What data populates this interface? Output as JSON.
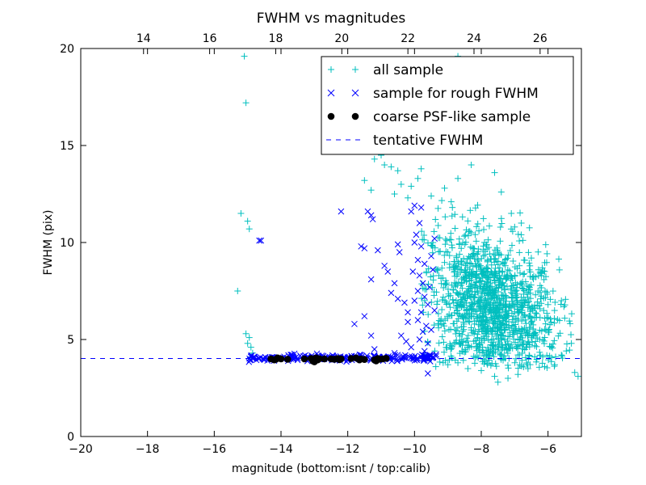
{
  "chart_data": {
    "type": "scatter",
    "title": "FWHM vs magnitudes",
    "xlabel": "magnitude (bottom:isnt / top:calib)",
    "ylabel": "FWHM (pix)",
    "xlim": [
      -20,
      -5
    ],
    "ylim": [
      0,
      20
    ],
    "top_xlim": [
      12.1,
      27.25
    ],
    "x_ticks": [
      -20,
      -18,
      -16,
      -14,
      -12,
      -10,
      -8,
      -6
    ],
    "x_tick_labels": [
      "−20",
      "−18",
      "−16",
      "−14",
      "−12",
      "−10",
      "−8",
      "−6"
    ],
    "y_ticks": [
      0,
      5,
      10,
      15,
      20
    ],
    "y_tick_labels": [
      "0",
      "5",
      "10",
      "15",
      "20"
    ],
    "top_x_ticks": [
      14,
      16,
      18,
      20,
      22,
      24,
      26
    ],
    "top_x_tick_labels": [
      "14",
      "16",
      "18",
      "20",
      "22",
      "24",
      "26"
    ],
    "grid": false,
    "legend_position": "top-right",
    "series": [
      {
        "name": "all sample",
        "marker": "plus",
        "color": "#00bfbf",
        "points": [
          [
            -15.1,
            19.6
          ],
          [
            -15.05,
            17.2
          ],
          [
            -15.2,
            11.5
          ],
          [
            -15.0,
            11.1
          ],
          [
            -14.95,
            10.7
          ],
          [
            -15.3,
            7.5
          ],
          [
            -15.05,
            5.3
          ],
          [
            -14.95,
            5.1
          ],
          [
            -15.0,
            4.8
          ],
          [
            -14.9,
            4.6
          ],
          [
            -14.85,
            4.3
          ],
          [
            -14.9,
            4.1
          ],
          [
            -11.0,
            14.5
          ],
          [
            -10.7,
            13.9
          ],
          [
            -10.9,
            14.0
          ],
          [
            -10.5,
            13.7
          ],
          [
            -10.4,
            13.0
          ],
          [
            -10.1,
            12.9
          ],
          [
            -10.6,
            12.5
          ],
          [
            -11.5,
            13.2
          ],
          [
            -11.3,
            12.7
          ],
          [
            -9.8,
            13.8
          ],
          [
            -9.9,
            13.3
          ],
          [
            -10.2,
            12.3
          ],
          [
            -11.2,
            14.3
          ],
          [
            -10.3,
            14.8
          ],
          [
            -8.5,
            15.4
          ],
          [
            -8.0,
            15.2
          ],
          [
            -7.8,
            14.7
          ],
          [
            -8.3,
            14.0
          ],
          [
            -7.6,
            13.6
          ],
          [
            -8.7,
            13.3
          ],
          [
            -9.1,
            12.8
          ],
          [
            -7.4,
            12.6
          ],
          [
            -8.9,
            12.1
          ],
          [
            -9.5,
            12.4
          ],
          [
            -7.1,
            11.5
          ],
          [
            -7.0,
            10.8
          ],
          [
            -6.8,
            11.0
          ],
          [
            -6.5,
            9.2
          ],
          [
            -6.3,
            7.5
          ],
          [
            -6.0,
            6.8
          ],
          [
            -5.6,
            7.0
          ],
          [
            -5.5,
            6.1
          ],
          [
            -5.3,
            4.8
          ],
          [
            -5.6,
            4.2
          ],
          [
            -5.8,
            3.7
          ],
          [
            -6.1,
            3.6
          ],
          [
            -5.2,
            3.3
          ],
          [
            -5.1,
            3.1
          ],
          [
            -9.5,
            4.0
          ],
          [
            -9.0,
            3.7
          ],
          [
            -8.7,
            3.8
          ],
          [
            -8.4,
            3.5
          ],
          [
            -8.0,
            3.4
          ],
          [
            -7.6,
            3.1
          ],
          [
            -7.5,
            2.8
          ],
          [
            -7.2,
            3.0
          ],
          [
            -6.9,
            3.2
          ],
          [
            -6.6,
            3.5
          ],
          [
            -8.7,
            19.6
          ],
          [
            -9.9,
            18.0
          ],
          [
            -9.6,
            17.3
          ],
          [
            -10.8,
            17.6
          ]
        ],
        "cluster": {
          "x_center": -7.7,
          "x_spread": 1.0,
          "y_center": 6.0,
          "y_spread": 1.9,
          "y_min": 3.5,
          "y_max": 13.0,
          "x_min": -9.8,
          "x_max": -5.2,
          "count": 1300
        }
      },
      {
        "name": "sample for rough FWHM",
        "marker": "x",
        "color": "#0000ff",
        "points": [
          [
            -14.6,
            10.1
          ],
          [
            -14.65,
            10.1
          ],
          [
            -12.2,
            11.6
          ],
          [
            -11.3,
            11.4
          ],
          [
            -11.25,
            11.2
          ],
          [
            -11.4,
            11.6
          ],
          [
            -11.6,
            9.8
          ],
          [
            -11.5,
            9.7
          ],
          [
            -11.1,
            9.6
          ],
          [
            -10.5,
            9.9
          ],
          [
            -10.45,
            9.5
          ],
          [
            -11.3,
            8.1
          ],
          [
            -11.5,
            6.2
          ],
          [
            -11.8,
            5.8
          ],
          [
            -11.2,
            4.5
          ],
          [
            -11.3,
            5.2
          ],
          [
            -10.9,
            8.8
          ],
          [
            -10.8,
            8.5
          ],
          [
            -10.6,
            7.9
          ],
          [
            -10.7,
            7.4
          ],
          [
            -10.5,
            7.1
          ],
          [
            -10.3,
            6.9
          ],
          [
            -10.2,
            6.4
          ],
          [
            -10.2,
            5.9
          ],
          [
            -10.0,
            11.9
          ],
          [
            -10.1,
            11.6
          ],
          [
            -9.8,
            11.8
          ],
          [
            -9.85,
            11.0
          ],
          [
            -9.95,
            10.4
          ],
          [
            -10.0,
            10.0
          ],
          [
            -9.8,
            9.8
          ],
          [
            -9.9,
            9.1
          ],
          [
            -10.05,
            8.5
          ],
          [
            -9.85,
            8.3
          ],
          [
            -9.7,
            8.9
          ],
          [
            -9.75,
            7.9
          ],
          [
            -9.9,
            7.5
          ],
          [
            -10.0,
            7.0
          ],
          [
            -9.7,
            7.2
          ],
          [
            -9.6,
            6.8
          ],
          [
            -9.8,
            6.4
          ],
          [
            -9.9,
            6.0
          ],
          [
            -9.65,
            5.7
          ],
          [
            -9.75,
            5.4
          ],
          [
            -9.85,
            5.0
          ],
          [
            -9.6,
            4.8
          ],
          [
            -9.7,
            4.4
          ],
          [
            -9.6,
            3.25
          ],
          [
            -10.4,
            5.2
          ],
          [
            -10.1,
            4.6
          ],
          [
            -10.25,
            4.9
          ],
          [
            -11.6,
            4.2
          ],
          [
            -11.2,
            4.15
          ],
          [
            -10.6,
            4.3
          ],
          [
            -9.4,
            10.2
          ],
          [
            -9.5,
            9.3
          ],
          [
            -9.45,
            8.6
          ],
          [
            -9.55,
            7.7
          ],
          [
            -9.4,
            6.5
          ],
          [
            -9.5,
            5.5
          ]
        ],
        "band": {
          "x_min": -15.0,
          "x_max": -9.3,
          "y_center": 4.05,
          "y_spread": 0.08,
          "count": 220
        }
      },
      {
        "name": "coarse PSF-like sample",
        "marker": "circle",
        "color": "#000000",
        "points": [
          [
            -14.3,
            4.0
          ],
          [
            -14.2,
            3.95
          ],
          [
            -14.1,
            4.05
          ],
          [
            -14.0,
            4.0
          ],
          [
            -13.8,
            3.98
          ],
          [
            -13.3,
            4.0
          ],
          [
            -13.1,
            4.02
          ],
          [
            -13.0,
            3.85
          ],
          [
            -12.9,
            3.95
          ],
          [
            -12.95,
            4.05
          ],
          [
            -12.5,
            4.0
          ],
          [
            -12.4,
            3.98
          ],
          [
            -12.3,
            4.02
          ],
          [
            -12.2,
            4.0
          ],
          [
            -11.9,
            4.02
          ],
          [
            -11.75,
            4.05
          ],
          [
            -11.6,
            4.0
          ],
          [
            -11.5,
            3.97
          ],
          [
            -11.2,
            3.95
          ],
          [
            -11.15,
            3.9
          ],
          [
            -11.1,
            4.02
          ],
          [
            -10.95,
            4.0
          ],
          [
            -10.85,
            4.03
          ],
          [
            -12.7,
            4.0
          ],
          [
            -13.05,
            3.9
          ],
          [
            -12.85,
            4.01
          ],
          [
            -11.65,
            3.95
          ],
          [
            -11.05,
            3.98
          ],
          [
            -14.15,
            3.98
          ],
          [
            -12.25,
            3.96
          ]
        ]
      },
      {
        "name": "tentative FWHM",
        "marker": "dashed-line",
        "color": "#0000ff",
        "y": 4.02
      }
    ]
  }
}
